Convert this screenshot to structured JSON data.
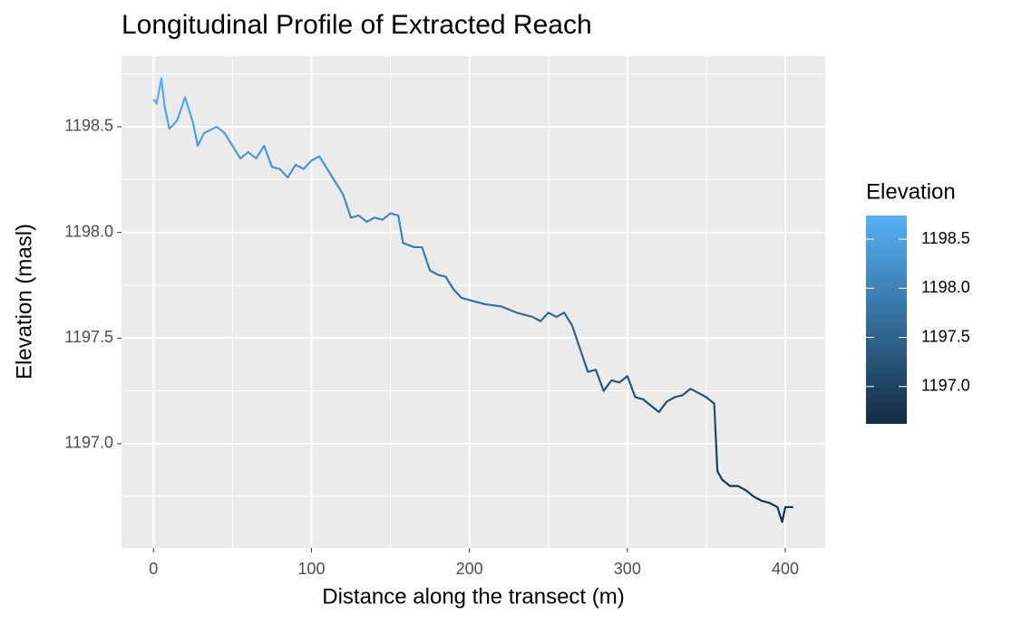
{
  "chart_data": {
    "type": "line",
    "title": "Longitudinal Profile of Extracted Reach",
    "x_label": "Distance along the transect (m)",
    "y_label": "Elevation (masl)",
    "x": [
      0,
      2,
      5,
      7,
      10,
      15,
      20,
      25,
      28,
      32,
      40,
      45,
      50,
      55,
      60,
      65,
      70,
      75,
      80,
      85,
      90,
      95,
      100,
      105,
      110,
      115,
      120,
      125,
      130,
      135,
      140,
      145,
      150,
      155,
      158,
      165,
      170,
      175,
      180,
      185,
      190,
      195,
      200,
      210,
      220,
      230,
      240,
      245,
      250,
      255,
      260,
      265,
      270,
      275,
      280,
      285,
      290,
      295,
      300,
      305,
      310,
      315,
      320,
      325,
      330,
      335,
      340,
      345,
      350,
      355,
      357,
      360,
      365,
      370,
      375,
      380,
      385,
      390,
      395,
      398,
      400,
      405
    ],
    "series": [
      {
        "name": "Elevation",
        "values": [
          1198.63,
          1198.61,
          1198.73,
          1198.6,
          1198.49,
          1198.53,
          1198.64,
          1198.52,
          1198.41,
          1198.47,
          1198.5,
          1198.47,
          1198.41,
          1198.35,
          1198.38,
          1198.35,
          1198.41,
          1198.31,
          1198.3,
          1198.26,
          1198.32,
          1198.3,
          1198.34,
          1198.36,
          1198.3,
          1198.24,
          1198.18,
          1198.07,
          1198.08,
          1198.05,
          1198.07,
          1198.06,
          1198.09,
          1198.08,
          1197.95,
          1197.93,
          1197.93,
          1197.82,
          1197.8,
          1197.79,
          1197.73,
          1197.69,
          1197.68,
          1197.66,
          1197.65,
          1197.62,
          1197.6,
          1197.58,
          1197.62,
          1197.6,
          1197.62,
          1197.56,
          1197.45,
          1197.34,
          1197.35,
          1197.25,
          1197.3,
          1197.29,
          1197.32,
          1197.22,
          1197.21,
          1197.18,
          1197.15,
          1197.2,
          1197.22,
          1197.23,
          1197.26,
          1197.24,
          1197.22,
          1197.19,
          1196.87,
          1196.83,
          1196.8,
          1196.8,
          1196.78,
          1196.75,
          1196.73,
          1196.72,
          1196.7,
          1196.63,
          1196.7,
          1196.7
        ]
      }
    ],
    "xlim": [
      -20.25,
      425.25
    ],
    "xticks": [
      0,
      100,
      200,
      300,
      400
    ],
    "ylim": [
      1196.507,
      1198.834
    ],
    "yticks": [
      {
        "value": 1197,
        "label": "1197.0"
      },
      {
        "value": 1197.5,
        "label": "1197.5"
      },
      {
        "value": 1198,
        "label": "1198.0"
      },
      {
        "value": 1198.5,
        "label": "1198.5"
      }
    ],
    "grid": true,
    "legend": {
      "title": "Elevation",
      "position": "right",
      "low_color": "#132B43",
      "high_color": "#56B1F7",
      "limits": [
        1196.62,
        1198.74
      ],
      "ticks": [
        {
          "value": 1197,
          "label": "1197.0"
        },
        {
          "value": 1197.5,
          "label": "1197.5"
        },
        {
          "value": 1198,
          "label": "1198.0"
        },
        {
          "value": 1198.5,
          "label": "1198.5"
        }
      ]
    }
  }
}
